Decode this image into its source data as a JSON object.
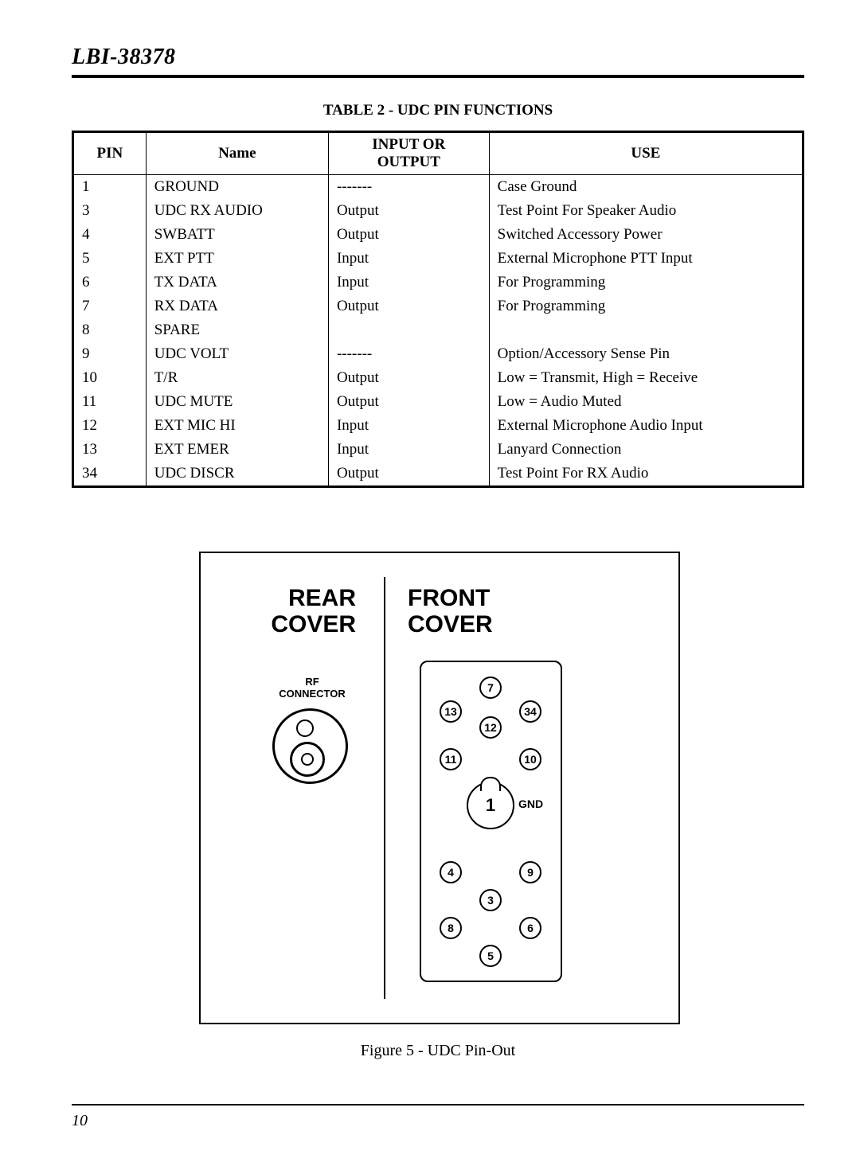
{
  "doc_header": "LBI-38378",
  "table": {
    "caption": "TABLE 2 - UDC PIN FUNCTIONS",
    "columns": {
      "pin": "PIN",
      "name": "Name",
      "io_l1": "INPUT OR",
      "io_l2": "OUTPUT",
      "use": "USE"
    },
    "rows": [
      {
        "pin": "1",
        "name": "GROUND",
        "io": "-------",
        "use": "Case Ground"
      },
      {
        "pin": "3",
        "name": "UDC RX AUDIO",
        "io": "Output",
        "use": "Test Point For Speaker Audio"
      },
      {
        "pin": "4",
        "name": "SWBATT",
        "io": "Output",
        "use": "Switched Accessory Power"
      },
      {
        "pin": "5",
        "name": "EXT PTT",
        "io": "Input",
        "use": "External Microphone PTT Input"
      },
      {
        "pin": "6",
        "name": "TX DATA",
        "io": "Input",
        "use": "For Programming"
      },
      {
        "pin": "7",
        "name": "RX DATA",
        "io": "Output",
        "use": "For Programming"
      },
      {
        "pin": "8",
        "name": "SPARE",
        "io": "",
        "use": ""
      },
      {
        "pin": "9",
        "name": "UDC VOLT",
        "io": "-------",
        "use": "Option/Accessory Sense Pin"
      },
      {
        "pin": "10",
        "name": "T/R",
        "io": "Output",
        "use": "Low = Transmit, High = Receive"
      },
      {
        "pin": "11",
        "name": "UDC MUTE",
        "io": "Output",
        "use": "Low = Audio Muted"
      },
      {
        "pin": "12",
        "name": "EXT MIC HI",
        "io": "Input",
        "use": "External Microphone Audio Input"
      },
      {
        "pin": "13",
        "name": "EXT EMER",
        "io": "Input",
        "use": "Lanyard Connection"
      },
      {
        "pin": "34",
        "name": "UDC DISCR",
        "io": "Output",
        "use": "Test Point For RX Audio"
      }
    ]
  },
  "diagram": {
    "rear_l1": "REAR",
    "rear_l2": "COVER",
    "front_l1": "FRONT",
    "front_l2": "COVER",
    "rf_l1": "RF",
    "rf_l2": "CONNECTOR",
    "gnd": "GND",
    "figure_caption": "Figure 5 - UDC Pin-Out",
    "pins": {
      "p7": "7",
      "p13": "13",
      "p34": "34",
      "p12": "12",
      "p11": "11",
      "p10": "10",
      "p1": "1",
      "p4": "4",
      "p9": "9",
      "p3": "3",
      "p8": "8",
      "p6": "6",
      "p5": "5"
    }
  },
  "page_number": "10"
}
